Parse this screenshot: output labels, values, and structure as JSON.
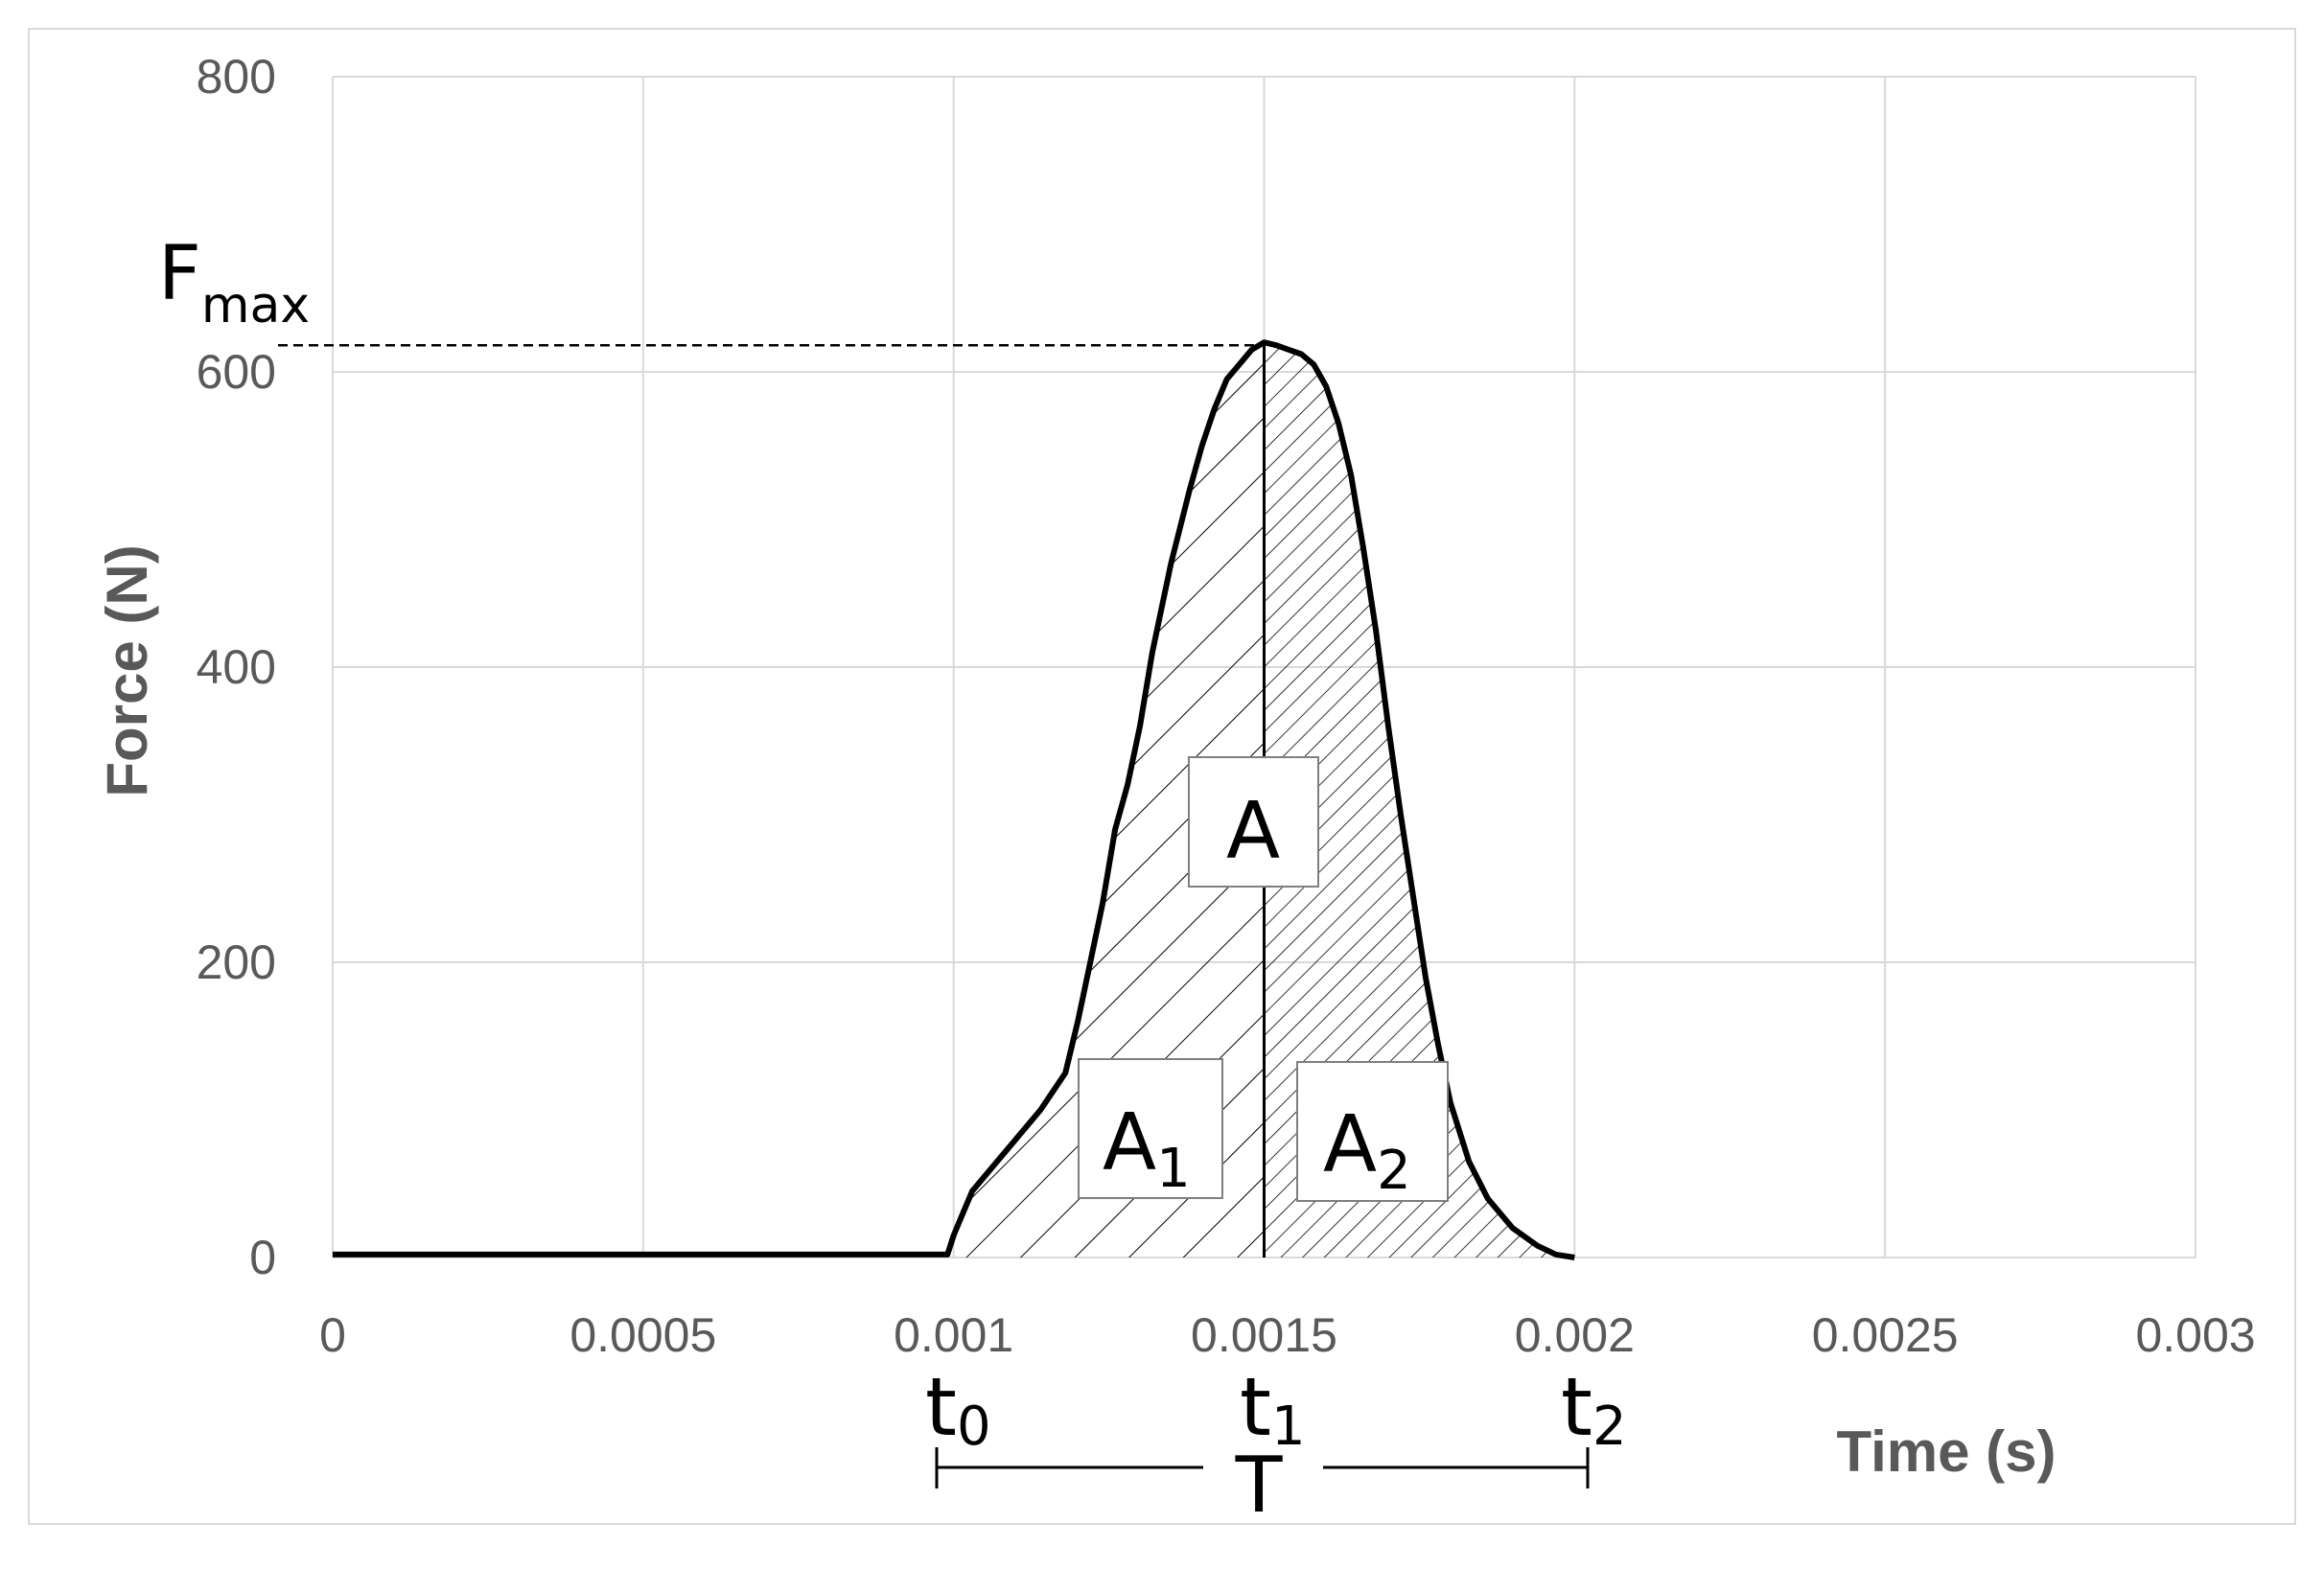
{
  "chart_data": {
    "type": "line",
    "xlabel": "Time (s)",
    "ylabel": "Force (N)",
    "xlim": [
      0,
      0.003
    ],
    "ylim": [
      0,
      800
    ],
    "grid": true,
    "x_ticks": [
      "0",
      "0.0005",
      "0.001",
      "0.0015",
      "0.002",
      "0.0025",
      "0.003"
    ],
    "y_ticks": [
      "0",
      "200",
      "400",
      "600",
      "800"
    ],
    "series": [
      {
        "x": [
          0,
          0.0002,
          0.0004,
          0.0006,
          0.0008,
          0.00099,
          0.001,
          0.00101,
          0.00103,
          0.00106,
          0.0011,
          0.00114,
          0.00118,
          0.0012,
          0.00122,
          0.00124,
          0.00126,
          0.00128,
          0.0013,
          0.00132,
          0.00135,
          0.00138,
          0.0014,
          0.00142,
          0.00144,
          0.00146,
          0.00148,
          0.0015,
          0.00152,
          0.00154,
          0.00156,
          0.00158,
          0.0016,
          0.00162,
          0.00164,
          0.00166,
          0.00168,
          0.0017,
          0.00172,
          0.00174,
          0.00176,
          0.00178,
          0.0018,
          0.00183,
          0.00186,
          0.0019,
          0.00194,
          0.00197,
          0.002
        ],
        "y": [
          2,
          2,
          2,
          2,
          2,
          2,
          15,
          25,
          45,
          60,
          80,
          100,
          125,
          160,
          200,
          240,
          290,
          320,
          360,
          410,
          470,
          520,
          550,
          575,
          595,
          605,
          615,
          620,
          618,
          615,
          612,
          605,
          590,
          565,
          530,
          480,
          425,
          360,
          300,
          245,
          190,
          145,
          105,
          65,
          40,
          20,
          8,
          2,
          0
        ]
      }
    ],
    "annotations": {
      "fmax_main": "F",
      "fmax_sub": "max",
      "fmax_value": 618,
      "t0_value": 0.001,
      "t1_value": 0.0015,
      "t2_value": 0.002,
      "area_total": "A",
      "area1_main": "A",
      "area1_sub": "1",
      "area2_main": "A",
      "area2_sub": "2",
      "t0_main": "t",
      "t0_sub": "0",
      "t1_main": "t",
      "t1_sub": "1",
      "t2_main": "t",
      "t2_sub": "2",
      "period": "T"
    }
  }
}
